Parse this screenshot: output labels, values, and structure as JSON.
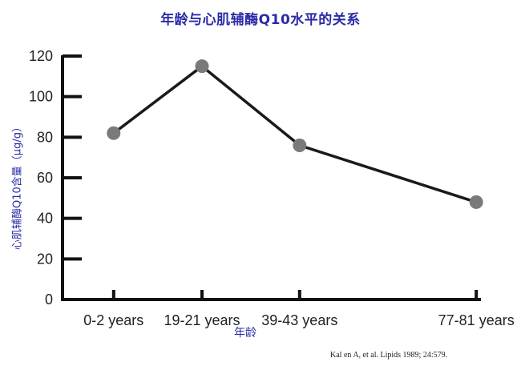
{
  "chart_data": {
    "type": "line",
    "title": "年龄与心肌辅酶Q10水平的关系",
    "xlabel": "年龄",
    "ylabel": "心肌辅酶Q10含量（μg/g）",
    "categories": [
      "0-2 years",
      "19-21 years",
      "39-43 years",
      "77-81 years"
    ],
    "x": [
      1,
      20,
      41,
      79
    ],
    "values": [
      82,
      115,
      76,
      48
    ],
    "ylim": [
      0,
      120
    ],
    "yticks": [
      0,
      20,
      40,
      60,
      80,
      100,
      120
    ],
    "grid": false,
    "legend": "none"
  },
  "source_note": "Kal en A, et al. Lipids 1989; 24:579.",
  "colors": {
    "title": "#2b2ba8",
    "axis": "#111111",
    "line": "#1a1a1a",
    "marker": "#7a7a7a"
  }
}
